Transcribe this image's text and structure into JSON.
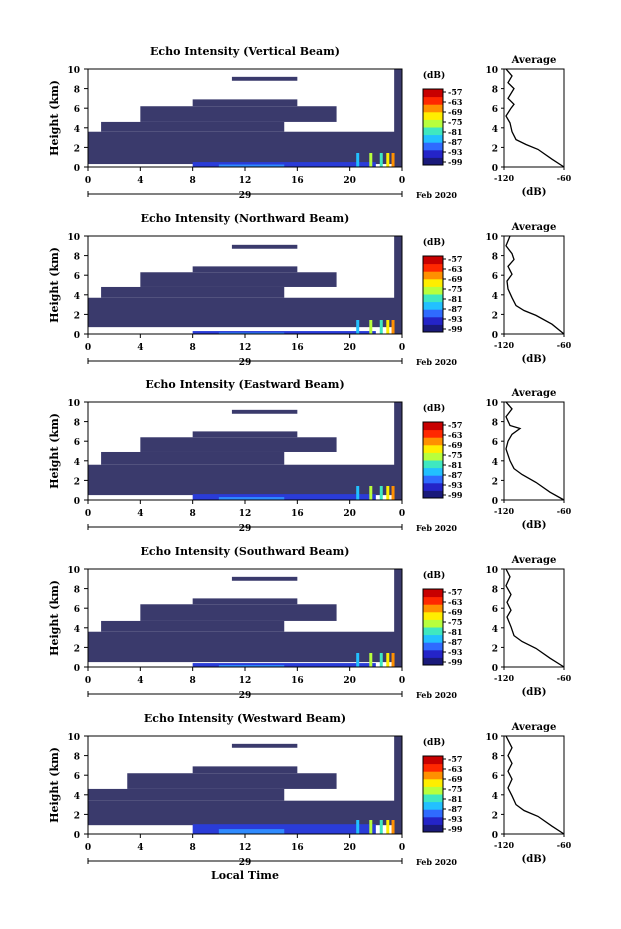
{
  "chart_data": {
    "type": "heatmap",
    "x_axis": {
      "ticks": [
        "0",
        "4",
        "8",
        "12",
        "16",
        "20",
        "0"
      ],
      "day_label": "29",
      "month_label": "Feb 2020",
      "xlabel": "Local Time",
      "xlim_hours": [
        0,
        24
      ]
    },
    "y_axis": {
      "ylabel": "Height (km)",
      "ticks": [
        "0",
        "2",
        "4",
        "6",
        "8",
        "10"
      ],
      "ylim_km": [
        0,
        10
      ]
    },
    "colorbar": {
      "unit": "(dB)",
      "ticks": [
        "-57",
        "-63",
        "-69",
        "-75",
        "-81",
        "-87",
        "-93",
        "-99"
      ],
      "colors": [
        "#1a1a7a",
        "#2424c8",
        "#2f6bff",
        "#22c0ff",
        "#3fe8c0",
        "#b8ff3c",
        "#ffee00",
        "#ff9000",
        "#ff2800",
        "#c80000"
      ]
    },
    "profile_axis": {
      "title": "Average",
      "xlabel": "(dB)",
      "xticks": [
        "-120",
        "-60"
      ],
      "xlim": [
        -120,
        -60
      ],
      "yticks": [
        "0",
        "2",
        "4",
        "6",
        "8",
        "10"
      ]
    },
    "panels": [
      {
        "title": "Echo Intensity (Vertical Beam)",
        "dark_bands": [
          [
            0,
            24,
            0.3,
            3.6
          ],
          [
            1,
            15,
            3.6,
            4.6
          ],
          [
            4,
            19,
            4.6,
            6.2
          ],
          [
            8,
            16,
            6.2,
            6.9
          ],
          [
            11,
            16,
            8.8,
            9.2
          ],
          [
            23.4,
            24,
            0,
            10
          ]
        ],
        "near_surface_km": 0.5,
        "profile": [
          [
            -60,
            0
          ],
          [
            -72,
            0.8
          ],
          [
            -86,
            1.8
          ],
          [
            -98,
            2.3
          ],
          [
            -108,
            2.8
          ],
          [
            -112,
            3.6
          ],
          [
            -114,
            4.5
          ],
          [
            -118,
            5.2
          ],
          [
            -113,
            6
          ],
          [
            -110,
            6.4
          ],
          [
            -116,
            7
          ],
          [
            -110,
            8
          ],
          [
            -116,
            8.6
          ],
          [
            -112,
            9.3
          ],
          [
            -118,
            10
          ]
        ]
      },
      {
        "title": "Echo Intensity (Northward Beam)",
        "dark_bands": [
          [
            0,
            24,
            0.7,
            3.7
          ],
          [
            1,
            15,
            3.7,
            4.8
          ],
          [
            4,
            19,
            4.8,
            6.3
          ],
          [
            8,
            16,
            6.3,
            6.9
          ],
          [
            11,
            16,
            8.7,
            9.1
          ],
          [
            23.4,
            24,
            0,
            10
          ]
        ],
        "near_surface_km": 0.3,
        "profile": [
          [
            -60,
            0
          ],
          [
            -72,
            1
          ],
          [
            -88,
            1.9
          ],
          [
            -100,
            2.4
          ],
          [
            -108,
            2.9
          ],
          [
            -112,
            3.7
          ],
          [
            -116,
            4.6
          ],
          [
            -117,
            5.4
          ],
          [
            -112,
            6.1
          ],
          [
            -116,
            6.9
          ],
          [
            -110,
            7.6
          ],
          [
            -112,
            8.2
          ],
          [
            -118,
            9
          ],
          [
            -114,
            10
          ]
        ]
      },
      {
        "title": "Echo Intensity (Eastward Beam)",
        "dark_bands": [
          [
            0,
            24,
            0.5,
            3.6
          ],
          [
            1,
            15,
            3.6,
            4.9
          ],
          [
            4,
            19,
            4.9,
            6.4
          ],
          [
            8,
            16,
            6.4,
            7
          ],
          [
            11,
            16,
            8.8,
            9.2
          ],
          [
            23.4,
            24,
            0,
            10
          ]
        ],
        "near_surface_km": 0.6,
        "profile": [
          [
            -60,
            0
          ],
          [
            -74,
            0.8
          ],
          [
            -88,
            1.8
          ],
          [
            -102,
            2.6
          ],
          [
            -110,
            3.2
          ],
          [
            -114,
            4
          ],
          [
            -118,
            5.2
          ],
          [
            -116,
            6
          ],
          [
            -112,
            6.7
          ],
          [
            -104,
            7.3
          ],
          [
            -114,
            7.6
          ],
          [
            -118,
            8.5
          ],
          [
            -112,
            9.3
          ],
          [
            -118,
            10
          ]
        ]
      },
      {
        "title": "Echo Intensity (Southward Beam)",
        "dark_bands": [
          [
            0,
            24,
            0.5,
            3.6
          ],
          [
            1,
            15,
            3.6,
            4.7
          ],
          [
            4,
            19,
            4.7,
            6.4
          ],
          [
            8,
            16,
            6.4,
            7
          ],
          [
            11,
            16,
            8.8,
            9.2
          ],
          [
            23.4,
            24,
            0,
            10
          ]
        ],
        "near_surface_km": 0.4,
        "profile": [
          [
            -60,
            0
          ],
          [
            -74,
            0.9
          ],
          [
            -88,
            1.9
          ],
          [
            -102,
            2.6
          ],
          [
            -110,
            3.2
          ],
          [
            -113,
            4.1
          ],
          [
            -117,
            5.1
          ],
          [
            -113,
            5.8
          ],
          [
            -117,
            6.6
          ],
          [
            -113,
            7.4
          ],
          [
            -118,
            8.3
          ],
          [
            -114,
            9.2
          ],
          [
            -118,
            10
          ]
        ]
      },
      {
        "title": "Echo Intensity (Westward Beam)",
        "dark_bands": [
          [
            0,
            24,
            0.9,
            3.4
          ],
          [
            0,
            15,
            3.4,
            4.6
          ],
          [
            3,
            19,
            4.6,
            6.2
          ],
          [
            8,
            16,
            6.2,
            6.9
          ],
          [
            11,
            16,
            8.8,
            9.2
          ],
          [
            23.4,
            24,
            0,
            10
          ]
        ],
        "near_surface_km": 1.0,
        "profile": [
          [
            -60,
            0
          ],
          [
            -72,
            0.8
          ],
          [
            -86,
            1.8
          ],
          [
            -100,
            2.4
          ],
          [
            -108,
            3
          ],
          [
            -112,
            3.9
          ],
          [
            -116,
            4.7
          ],
          [
            -112,
            5.6
          ],
          [
            -116,
            6.4
          ],
          [
            -112,
            7.2
          ],
          [
            -116,
            8
          ],
          [
            -112,
            8.8
          ],
          [
            -118,
            10
          ]
        ]
      }
    ]
  }
}
